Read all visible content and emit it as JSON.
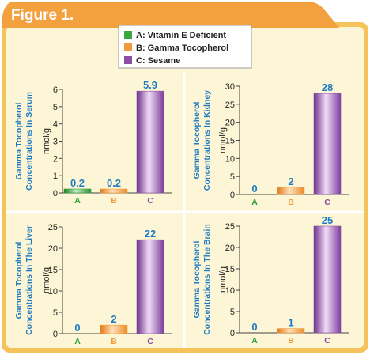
{
  "figure_title": "Figure 1.",
  "legend": [
    {
      "label": "A: Vitamin E Deficient",
      "color": "#3aa63f"
    },
    {
      "label": "B: Gamma Tocopherol",
      "color": "#f29a38"
    },
    {
      "label": "C: Sesame",
      "color": "#8b4ea6"
    }
  ],
  "colors": {
    "frame": "#f6c35a",
    "panel": "#fdf6d6",
    "label_blue": "#1f7bc1",
    "title_tab": "#f3a13e",
    "a_color": "#2f9e3a",
    "b_color": "#f29a38",
    "c_color": "#8b4ea6"
  },
  "chart_data": [
    {
      "type": "bar",
      "title": "Gamma Tocopherol Concentrations In Serum",
      "ylabel": "nmol/g",
      "categories": [
        "A",
        "B",
        "C"
      ],
      "values": [
        0.2,
        0.2,
        5.9
      ],
      "value_labels": [
        "0.2",
        "0.2",
        "5.9"
      ],
      "ylim": [
        0,
        6
      ],
      "yticks": [
        0,
        1,
        2,
        3,
        4,
        5,
        6
      ]
    },
    {
      "type": "bar",
      "title": "Gamma Tocopherol Concentrations In Kidney",
      "ylabel": "nmol/g",
      "categories": [
        "A",
        "B",
        "C"
      ],
      "values": [
        0,
        2,
        28
      ],
      "value_labels": [
        "0",
        "2",
        "28"
      ],
      "ylim": [
        0,
        30
      ],
      "yticks": [
        0,
        5,
        10,
        15,
        20,
        25,
        30
      ]
    },
    {
      "type": "bar",
      "title": "Gamma Tocopherol Concentrations In The Liver",
      "ylabel": "nmol/g",
      "categories": [
        "A",
        "B",
        "C"
      ],
      "values": [
        0,
        2,
        22
      ],
      "value_labels": [
        "0",
        "2",
        "22"
      ],
      "ylim": [
        0,
        25
      ],
      "yticks": [
        0,
        5,
        10,
        15,
        20,
        25
      ]
    },
    {
      "type": "bar",
      "title": "Gamma Tocopherol Concentrations In The Brain",
      "ylabel": "nmol/g",
      "categories": [
        "A",
        "B",
        "C"
      ],
      "values": [
        0,
        1,
        25
      ],
      "value_labels": [
        "0",
        "1",
        "25"
      ],
      "ylim": [
        0,
        25
      ],
      "yticks": [
        0,
        5,
        10,
        15,
        20,
        25
      ]
    }
  ]
}
